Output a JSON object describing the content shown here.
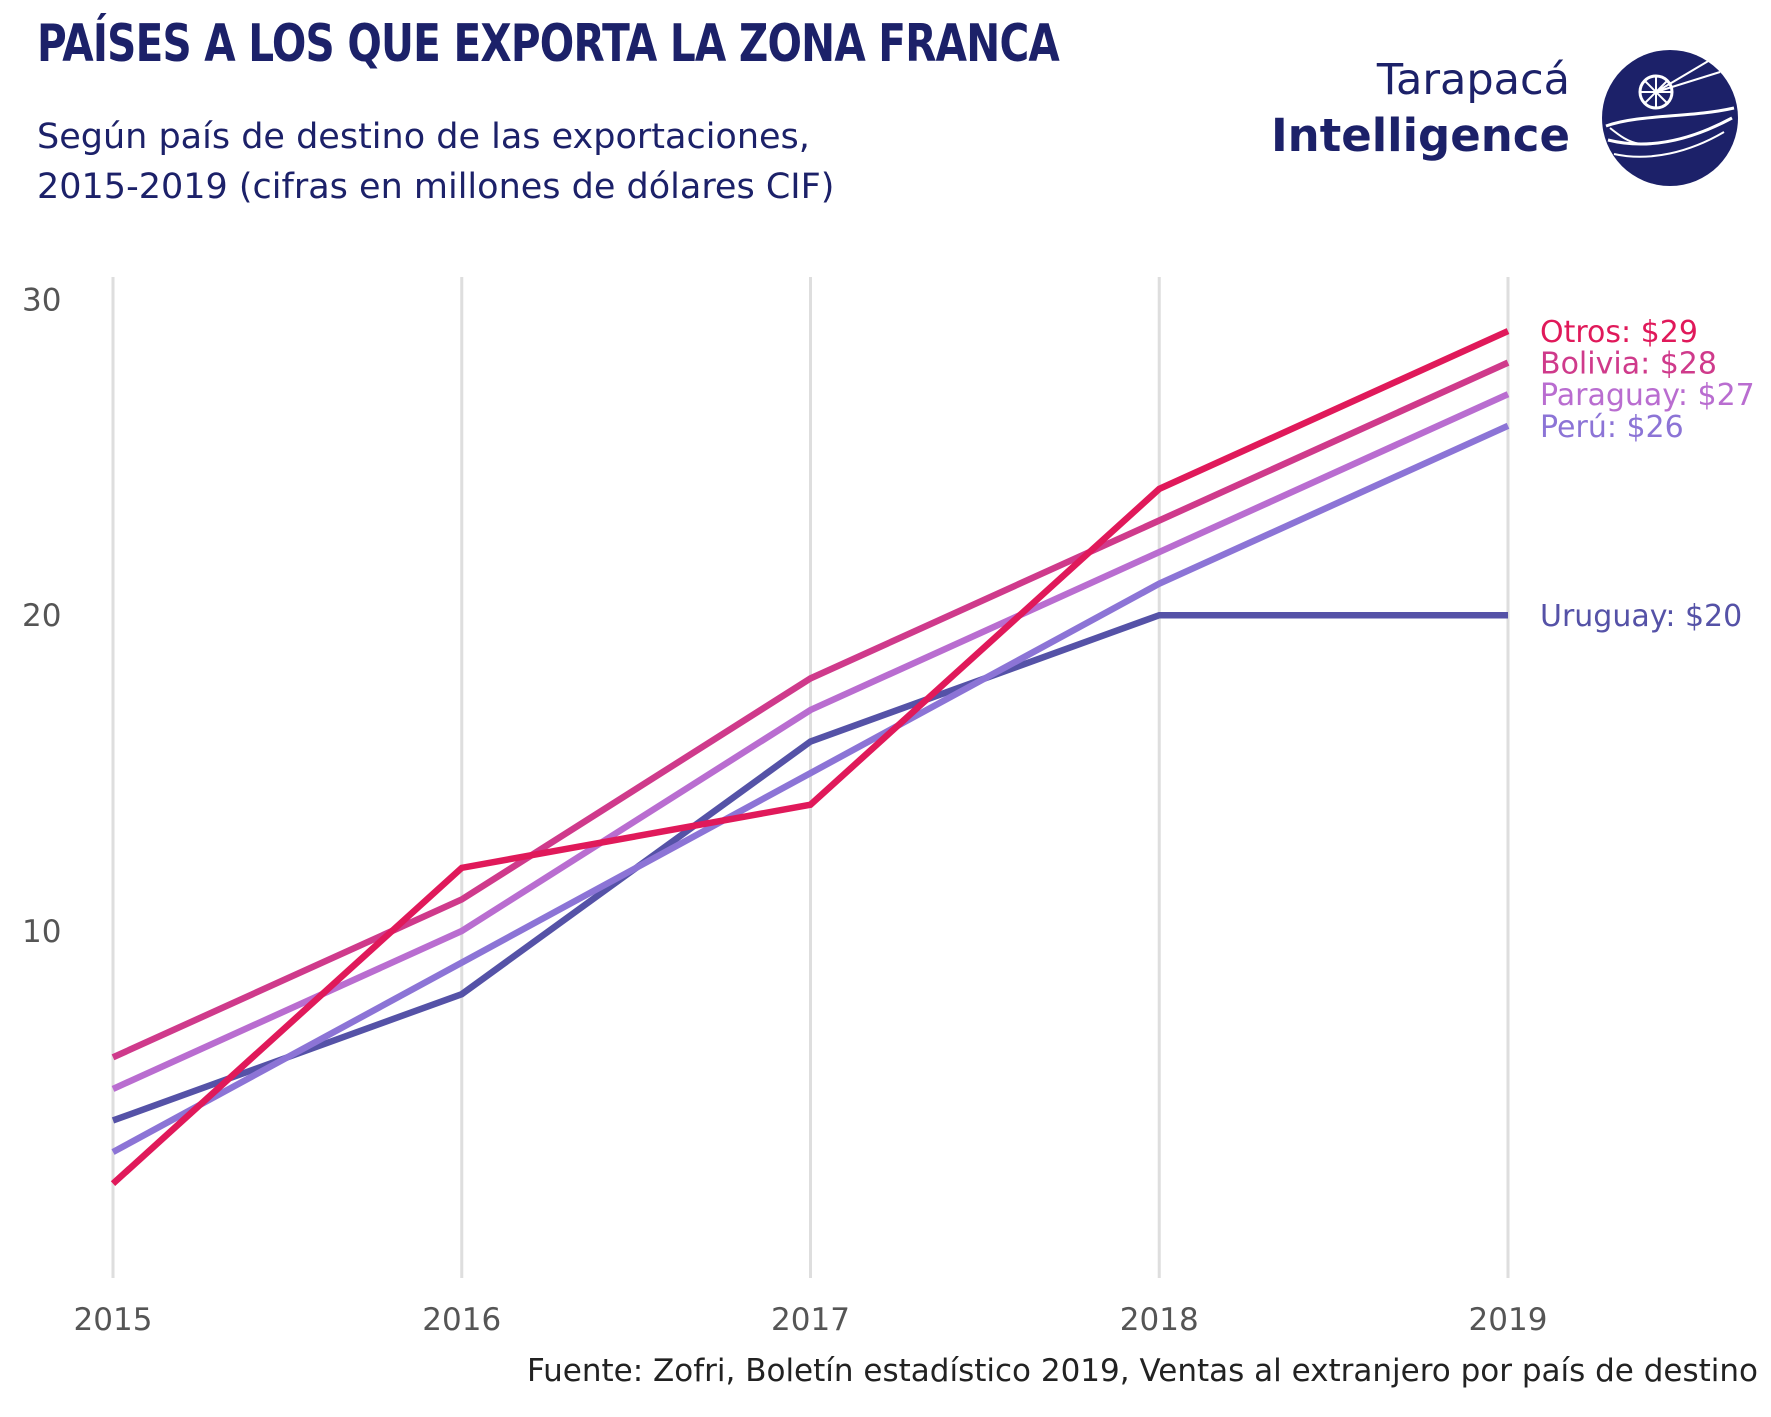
{
  "header": {
    "title": "PAÍSES A LOS QUE EXPORTA LA ZONA FRANCA",
    "subtitle_line1": "Según país de destino de las exportaciones,",
    "subtitle_line2": "2015-2019 (cifras en millones de dólares CIF)"
  },
  "brand": {
    "line1": "Tarapacá",
    "line2": "Intelligence",
    "color": "#1c2169"
  },
  "footer": {
    "source": "Fuente: Zofri, Boletín estadístico 2019, Ventas al extranjero por país de destino"
  },
  "chart_data": {
    "type": "line",
    "title": "PAÍSES A LOS QUE EXPORTA LA ZONA FRANCA",
    "xlabel": "",
    "ylabel": "",
    "x": [
      2015,
      2016,
      2017,
      2018,
      2019
    ],
    "x_tick_labels": [
      "2015",
      "2016",
      "2017",
      "2018",
      "2019"
    ],
    "y_ticks": [
      10,
      20,
      30
    ],
    "y_tick_labels": [
      "10",
      "20",
      "30"
    ],
    "ylim": [
      0.5,
      30.3
    ],
    "grid": "vertical",
    "legend": "direct labels at line ends (right)",
    "series": [
      {
        "name": "Uruguay",
        "values": [
          4,
          8,
          16,
          20,
          20
        ],
        "color": "#5552a7",
        "end_label": "Uruguay: $20"
      },
      {
        "name": "Perú",
        "values": [
          3,
          9,
          15,
          21,
          26
        ],
        "color": "#8c74d6",
        "end_label": "Perú: $26"
      },
      {
        "name": "Paraguay",
        "values": [
          5,
          10,
          17,
          22,
          27
        ],
        "color": "#b96dd0",
        "end_label": "Paraguay: $27"
      },
      {
        "name": "Bolivia",
        "values": [
          6,
          11,
          18,
          23,
          28
        ],
        "color": "#cf3a8b",
        "end_label": "Bolivia: $28"
      },
      {
        "name": "Otros",
        "values": [
          2,
          12,
          14,
          24,
          29
        ],
        "color": "#e0195a",
        "end_label": "Otros: $29"
      }
    ]
  }
}
